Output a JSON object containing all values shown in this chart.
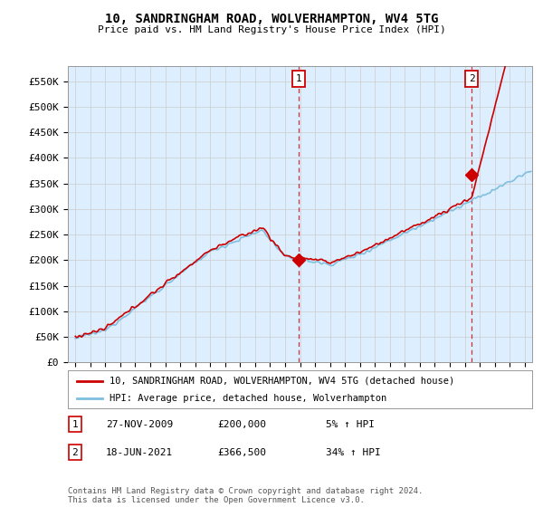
{
  "title": "10, SANDRINGHAM ROAD, WOLVERHAMPTON, WV4 5TG",
  "subtitle": "Price paid vs. HM Land Registry's House Price Index (HPI)",
  "ylabel_ticks": [
    "£0",
    "£50K",
    "£100K",
    "£150K",
    "£200K",
    "£250K",
    "£300K",
    "£350K",
    "£400K",
    "£450K",
    "£500K",
    "£550K"
  ],
  "ytick_values": [
    0,
    50000,
    100000,
    150000,
    200000,
    250000,
    300000,
    350000,
    400000,
    450000,
    500000,
    550000
  ],
  "ylim": [
    0,
    580000
  ],
  "hpi_color": "#7fbfdf",
  "price_color": "#cc0000",
  "chart_bg": "#ddeeff",
  "sale1_t": 2009.917,
  "sale1_p": 200000,
  "sale2_t": 2021.458,
  "sale2_p": 366500,
  "sale1_date": "27-NOV-2009",
  "sale1_price": "£200,000",
  "sale1_hpi": "5% ↑ HPI",
  "sale2_date": "18-JUN-2021",
  "sale2_price": "£366,500",
  "sale2_hpi": "34% ↑ HPI",
  "legend_line1": "10, SANDRINGHAM ROAD, WOLVERHAMPTON, WV4 5TG (detached house)",
  "legend_line2": "HPI: Average price, detached house, Wolverhampton",
  "footer": "Contains HM Land Registry data © Crown copyright and database right 2024.\nThis data is licensed under the Open Government Licence v3.0.",
  "background_color": "#ffffff",
  "grid_color": "#cccccc"
}
